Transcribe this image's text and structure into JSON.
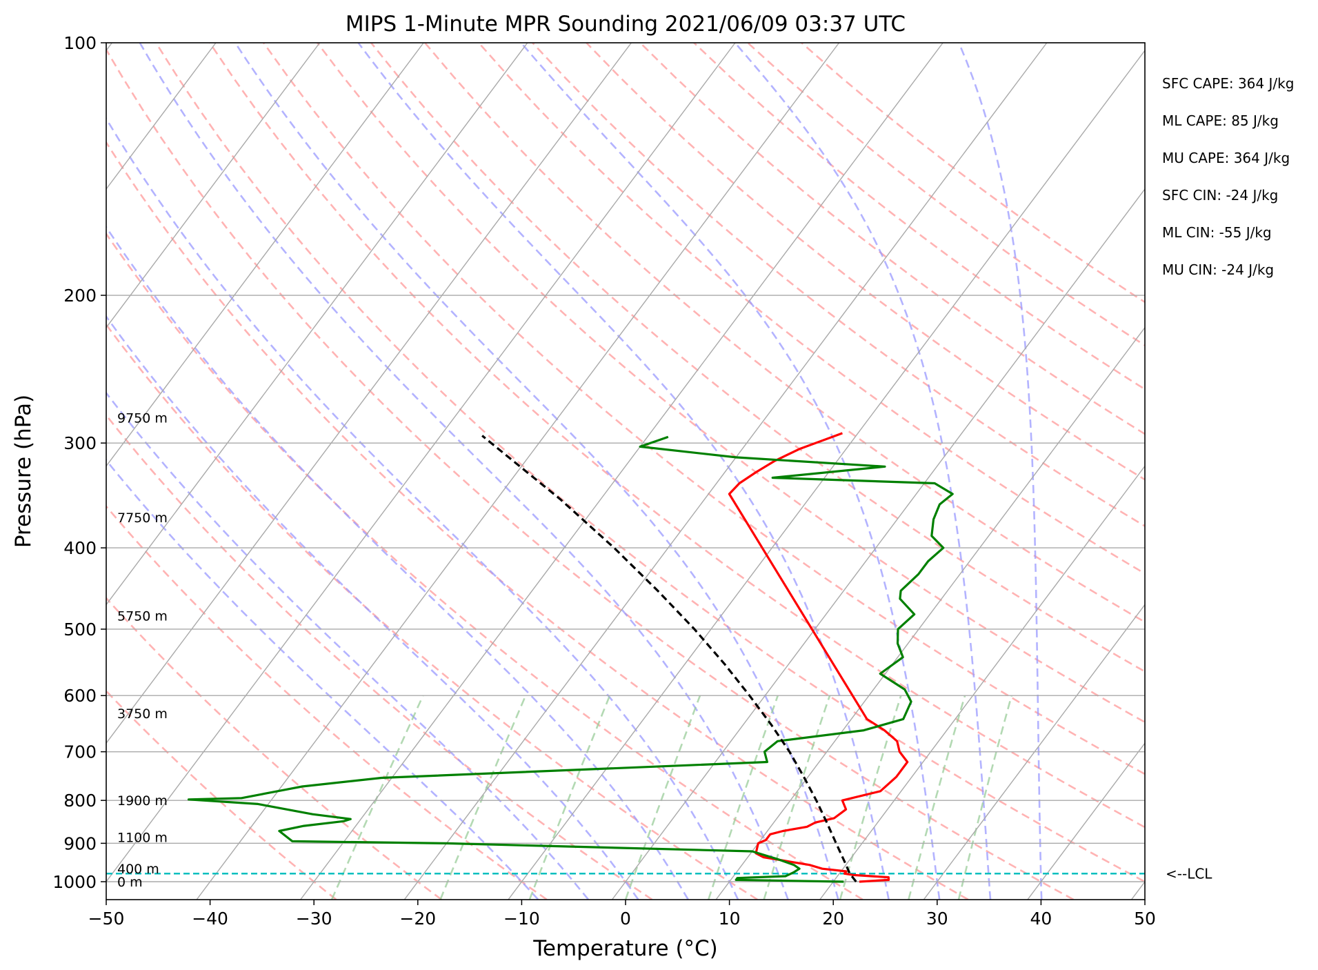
{
  "chart_data": {
    "type": "skew-t",
    "title": "MIPS 1-Minute MPR Sounding 2021/06/09 03:37 UTC",
    "xlabel": "Temperature (°C)",
    "ylabel": "Pressure (hPa)",
    "xlim": [
      -50,
      50
    ],
    "ylim": [
      1050,
      100
    ],
    "x_ticks": [
      -50,
      -40,
      -30,
      -20,
      -10,
      0,
      10,
      20,
      30,
      40,
      50
    ],
    "x_tick_labels": [
      "−50",
      "−40",
      "−30",
      "−20",
      "−10",
      "0",
      "10",
      "20",
      "30",
      "40",
      "50"
    ],
    "y_ticks": [
      100,
      200,
      300,
      400,
      500,
      600,
      700,
      800,
      900,
      1000
    ],
    "y_tick_labels": [
      "100",
      "200",
      "300",
      "400",
      "500",
      "600",
      "700",
      "800",
      "900",
      "1000"
    ],
    "y_scale": "log",
    "grid": true,
    "lcl_label": "<--LCL",
    "lcl_pressure": 978,
    "height_labels": [
      {
        "text": "9750 m",
        "pressure": 280
      },
      {
        "text": "7750 m",
        "pressure": 368
      },
      {
        "text": "5750 m",
        "pressure": 482
      },
      {
        "text": "3750 m",
        "pressure": 630
      },
      {
        "text": "1900 m",
        "pressure": 800
      },
      {
        "text": "1100 m",
        "pressure": 885
      },
      {
        "text": "400 m",
        "pressure": 965
      },
      {
        "text": "0 m",
        "pressure": 1000
      }
    ],
    "indices": [
      "SFC CAPE: 364 J/kg",
      "ML CAPE: 85 J/kg",
      "MU CAPE: 364 J/kg",
      "SFC CIN: -24 J/kg",
      "ML CIN: -55 J/kg",
      "MU CIN: -24 J/kg"
    ],
    "series": [
      {
        "name": "",
        "role": "temperature",
        "color": "#ff0000",
        "points": [
          [
            1000,
            22.5
          ],
          [
            995,
            25.2
          ],
          [
            988,
            25
          ],
          [
            982,
            21.5
          ],
          [
            978,
            20.5
          ],
          [
            972,
            20.5
          ],
          [
            965,
            18
          ],
          [
            955,
            16.5
          ],
          [
            945,
            14
          ],
          [
            935,
            11.5
          ],
          [
            925,
            10.5
          ],
          [
            900,
            10
          ],
          [
            892,
            10.5
          ],
          [
            878,
            10.5
          ],
          [
            870,
            11.5
          ],
          [
            860,
            13.5
          ],
          [
            850,
            14
          ],
          [
            840,
            15.5
          ],
          [
            820,
            16
          ],
          [
            800,
            15
          ],
          [
            780,
            18
          ],
          [
            750,
            18.5
          ],
          [
            720,
            18.5
          ],
          [
            700,
            17
          ],
          [
            680,
            16
          ],
          [
            660,
            14
          ],
          [
            640,
            11.5
          ],
          [
            345,
            -18
          ],
          [
            335,
            -17.8
          ],
          [
            325,
            -17
          ],
          [
            315,
            -16
          ],
          [
            305,
            -14.5
          ],
          [
            292,
            -11.5
          ]
        ]
      },
      {
        "name": "",
        "role": "dewpoint",
        "color": "#008000",
        "points": [
          [
            1000,
            21
          ],
          [
            995,
            10.5
          ],
          [
            990,
            10.5
          ],
          [
            985,
            15
          ],
          [
            975,
            15.5
          ],
          [
            965,
            15.8
          ],
          [
            955,
            15
          ],
          [
            940,
            13
          ],
          [
            920,
            10
          ],
          [
            900,
            -20
          ],
          [
            895,
            -35
          ],
          [
            870,
            -37
          ],
          [
            858,
            -35
          ],
          [
            847,
            -31.5
          ],
          [
            842,
            -31
          ],
          [
            831,
            -35
          ],
          [
            808,
            -41
          ],
          [
            798,
            -48
          ],
          [
            795,
            -43
          ],
          [
            770,
            -38
          ],
          [
            752,
            -31
          ],
          [
            720,
            5
          ],
          [
            700,
            4
          ],
          [
            680,
            4.5
          ],
          [
            660,
            12
          ],
          [
            640,
            15
          ],
          [
            610,
            14.5
          ],
          [
            590,
            13
          ],
          [
            565,
            9.5
          ],
          [
            540,
            10.5
          ],
          [
            520,
            9
          ],
          [
            500,
            8
          ],
          [
            480,
            8.5
          ],
          [
            460,
            6
          ],
          [
            450,
            5.5
          ],
          [
            430,
            6
          ],
          [
            415,
            6
          ],
          [
            400,
            6.5
          ],
          [
            387,
            4.5
          ],
          [
            370,
            3.5
          ],
          [
            355,
            3
          ],
          [
            345,
            3.5
          ],
          [
            335,
            1
          ],
          [
            330,
            -15
          ],
          [
            320,
            -5
          ],
          [
            312,
            -20
          ],
          [
            303,
            -30
          ],
          [
            295,
            -28
          ]
        ]
      },
      {
        "name": "",
        "role": "parcel",
        "color": "#000000",
        "points": [
          [
            1000,
            22.2
          ],
          [
            978,
            21.0
          ],
          [
            950,
            19.8
          ],
          [
            900,
            17.5
          ],
          [
            850,
            15.1
          ],
          [
            800,
            12.5
          ],
          [
            750,
            9.6
          ],
          [
            700,
            6.4
          ],
          [
            650,
            2.7
          ],
          [
            600,
            -1.5
          ],
          [
            550,
            -6.2
          ],
          [
            500,
            -11.6
          ],
          [
            450,
            -17.9
          ],
          [
            400,
            -25.2
          ],
          [
            350,
            -33.9
          ],
          [
            300,
            -44.6
          ],
          [
            294,
            -46.0
          ]
        ]
      }
    ],
    "dry_adiabats_theta_c": [
      -30,
      -20,
      -10,
      0,
      10,
      20,
      30,
      40,
      50,
      60,
      70,
      80,
      90,
      100,
      110,
      120,
      130,
      140,
      150,
      160,
      170
    ],
    "moist_adiabats_start_c": [
      -10,
      -5,
      0,
      5,
      10,
      15,
      20,
      25,
      30,
      35,
      40
    ],
    "mixing_ratio_g_kg": [
      0.4,
      1,
      2,
      4,
      7,
      10,
      16,
      24,
      32
    ],
    "colors": {
      "isotherm": "#a9a9a9",
      "isobar": "#a9a9a9",
      "dry_adiabat": "#ff9999",
      "moist_adiabat": "#9999ff",
      "mixing_ratio": "#99cc99",
      "lcl_line": "#00bfbf"
    }
  }
}
